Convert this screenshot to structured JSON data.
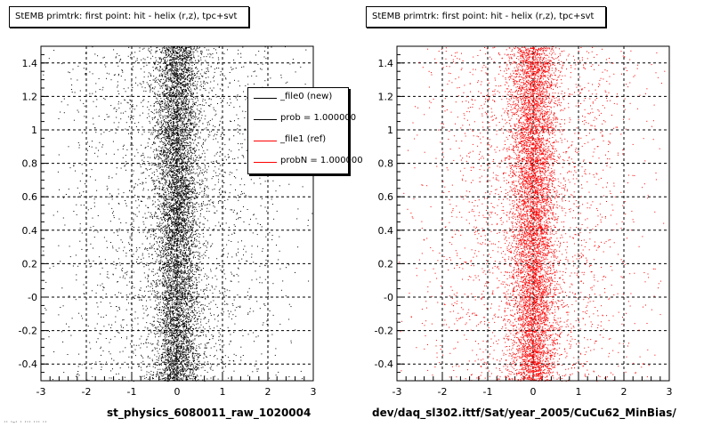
{
  "panels": [
    {
      "title": "StEMB primtrk: first point: hit - helix (r,z), tpc+svt",
      "caption": "st_physics_6080011_raw_1020004",
      "marker_color": "#000000"
    },
    {
      "title": "StEMB primtrk: first point: hit - helix (r,z), tpc+svt",
      "caption": "dev/daq_sl302.ittf/Sat/year_2005/CuCu62_MinBias/",
      "marker_color": "#ff0000"
    }
  ],
  "legend": {
    "entries": [
      {
        "label": "_file0 (new)",
        "color": "#000000"
      },
      {
        "label": "prob = 1.000000",
        "color": "#000000"
      },
      {
        "label": "_file1 (ref)",
        "color": "#ff0000"
      },
      {
        "label": "probN = 1.000000",
        "color": "#ff0000"
      }
    ]
  },
  "footer_note": "·· ·-· · ··· ··· ··",
  "chart_data": [
    {
      "type": "scatter",
      "title": "StEMB primtrk: first point: hit - helix (r,z), tpc+svt",
      "xlabel": "st_physics_6080011_raw_1020004",
      "ylabel": "",
      "xlim": [
        -3,
        3
      ],
      "ylim": [
        -0.5,
        1.5
      ],
      "x_ticks": [
        "-3",
        "-2",
        "-1",
        "0",
        "1",
        "2",
        "3"
      ],
      "y_ticks": [
        "-0.4",
        "-0.2",
        "-0",
        "0.2",
        "0.4",
        "0.6",
        "0.8",
        "1",
        "1.2",
        "1.4"
      ],
      "grid": true,
      "color": "#000000",
      "distribution": {
        "x_center": 0.0,
        "x_core_sigma": 0.25,
        "x_tail_sigma": 1.2,
        "y_range": [
          -0.5,
          1.5
        ]
      }
    },
    {
      "type": "scatter",
      "title": "StEMB primtrk: first point: hit - helix (r,z), tpc+svt",
      "xlabel": "dev/daq_sl302.ittf/Sat/year_2005/CuCu62_MinBias/",
      "ylabel": "",
      "xlim": [
        -3,
        3
      ],
      "ylim": [
        -0.5,
        1.5
      ],
      "x_ticks": [
        "-3",
        "-2",
        "-1",
        "0",
        "1",
        "2",
        "3"
      ],
      "y_ticks": [
        "-0.4",
        "-0.2",
        "-0",
        "0.2",
        "0.4",
        "0.6",
        "0.8",
        "1",
        "1.2",
        "1.4"
      ],
      "grid": true,
      "color": "#ff0000",
      "distribution": {
        "x_center": 0.0,
        "x_core_sigma": 0.25,
        "x_tail_sigma": 1.2,
        "y_range": [
          -0.5,
          1.5
        ]
      }
    }
  ]
}
